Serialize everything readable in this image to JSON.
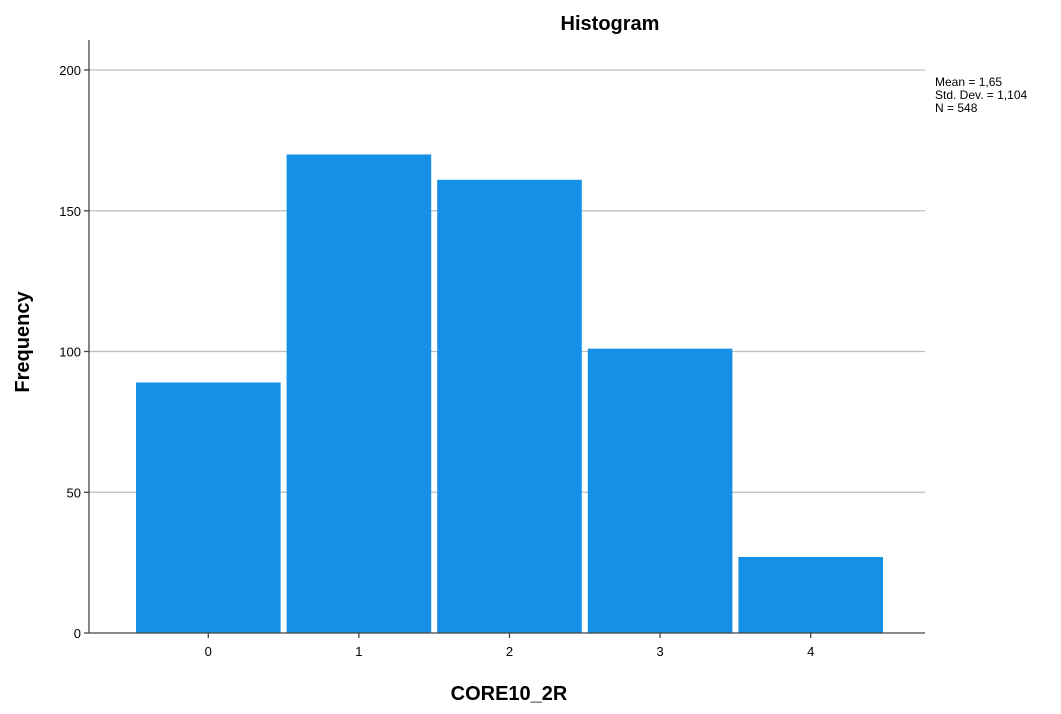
{
  "chart_data": {
    "type": "bar",
    "title": "Histogram",
    "xlabel": "CORE10_2R",
    "ylabel": "Frequency",
    "categories": [
      "0",
      "1",
      "2",
      "3",
      "4"
    ],
    "values": [
      89,
      170,
      161,
      101,
      27
    ],
    "ylim": [
      0,
      200
    ],
    "yticks": [
      "0",
      "50",
      "100",
      "150",
      "200"
    ],
    "grid": true,
    "stats": [
      "Mean = 1,65",
      "Std. Dev. = 1,104",
      "N = 548"
    ],
    "bar_color": "#1590E6"
  }
}
